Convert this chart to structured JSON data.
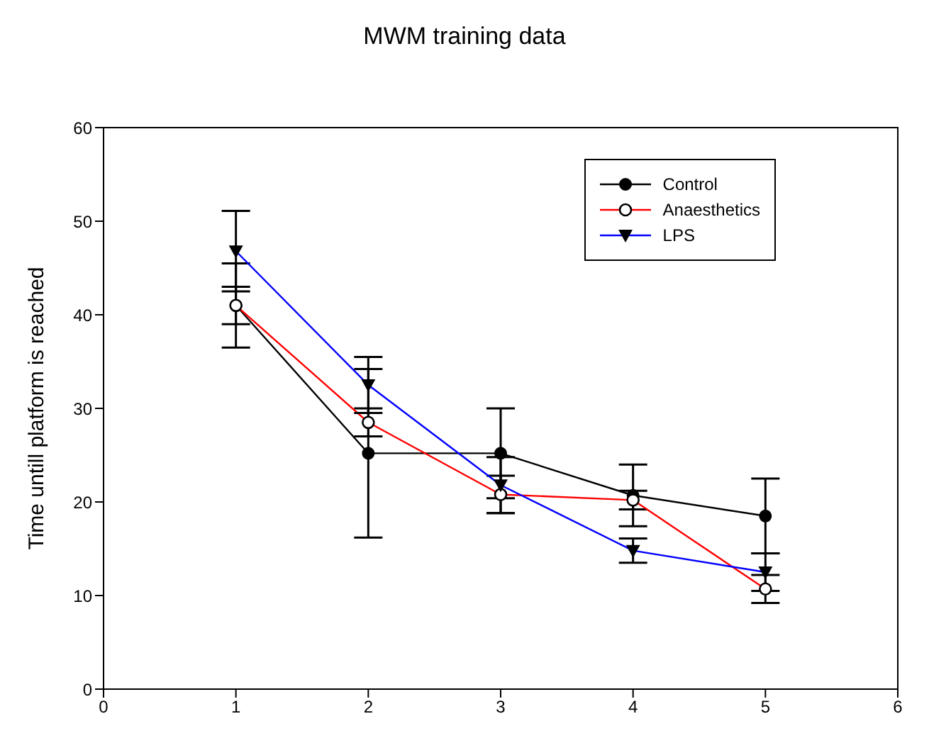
{
  "chart_data": {
    "type": "line",
    "title": "MWM training data",
    "ylabel": "Time untill platform is reached",
    "x": [
      1,
      2,
      3,
      4,
      5
    ],
    "series": [
      {
        "name": "Control",
        "color": "#000000",
        "marker": "circle",
        "values": [
          41,
          25.2,
          25.2,
          20.7,
          18.5
        ],
        "errors": [
          4.5,
          9,
          4.8,
          3.3,
          4
        ]
      },
      {
        "name": "Anaesthetics",
        "color": "#ff0000",
        "marker": "circle-open",
        "values": [
          41,
          28.5,
          20.8,
          20.2,
          10.7
        ],
        "errors": [
          2,
          1.5,
          2,
          1,
          1.5
        ]
      },
      {
        "name": "LPS",
        "color": "#0000ff",
        "marker": "triangle-down",
        "values": [
          46.8,
          32.5,
          21.8,
          14.8,
          12.5
        ],
        "errors": [
          4.3,
          3,
          3,
          1.3,
          2
        ]
      }
    ],
    "xlim": [
      0,
      6
    ],
    "xticks": [
      0,
      1,
      2,
      3,
      4,
      5,
      6
    ],
    "ylim": [
      0,
      60
    ],
    "yticks": [
      0,
      10,
      20,
      30,
      40,
      50,
      60
    ],
    "grid": false,
    "legend": "top right"
  }
}
